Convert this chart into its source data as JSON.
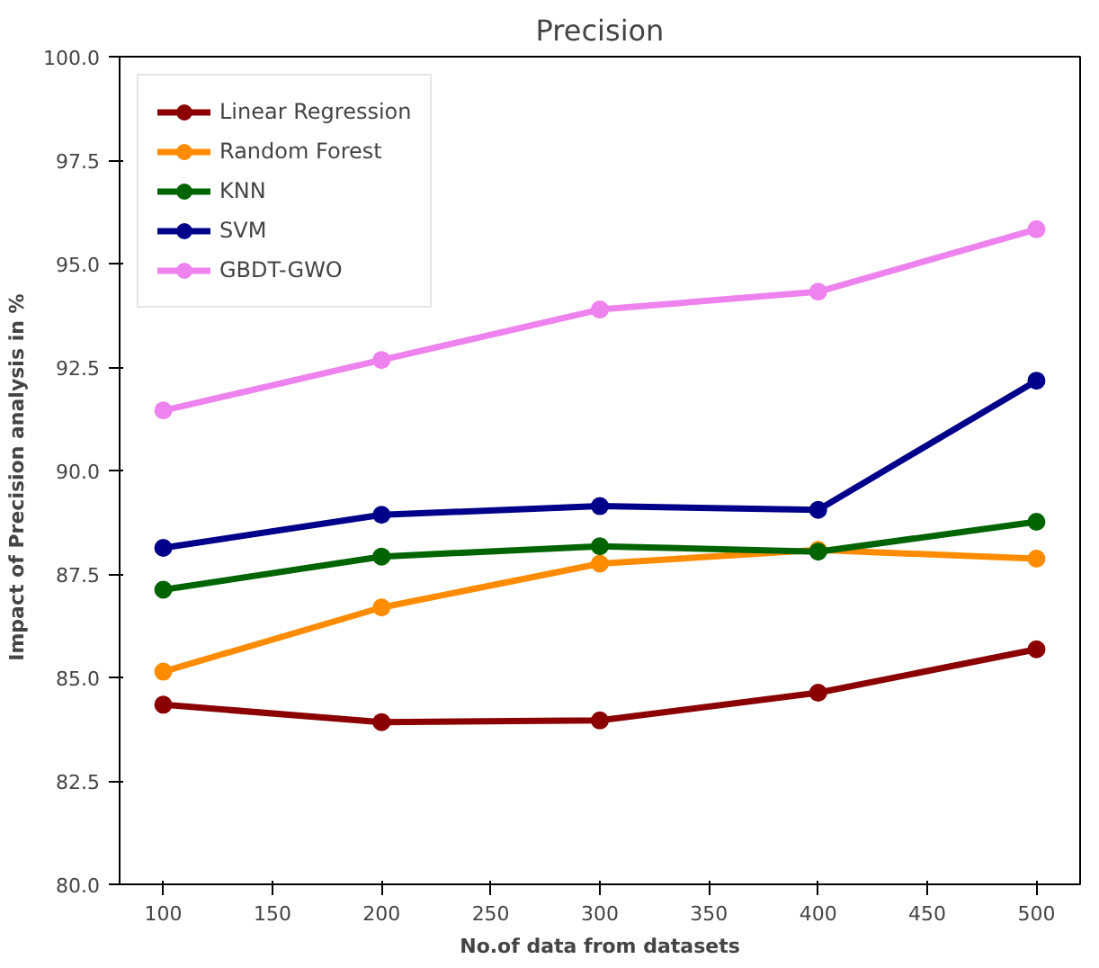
{
  "chart_data": {
    "type": "line",
    "title": "Precision",
    "xlabel": "No.of data from datasets",
    "ylabel": "Impact of  Precision  analysis in %",
    "x": [
      100,
      200,
      300,
      400,
      500
    ],
    "series": [
      {
        "name": "Linear Regression",
        "color": "#8b0000",
        "values": [
          84.34,
          83.92,
          83.96,
          84.63,
          85.68
        ]
      },
      {
        "name": "Random Forest",
        "color": "#ff8c00",
        "values": [
          85.14,
          86.69,
          87.75,
          88.08,
          87.87
        ]
      },
      {
        "name": "KNN",
        "color": "#006400",
        "values": [
          87.12,
          87.92,
          88.17,
          88.04,
          88.76
        ]
      },
      {
        "name": "SVM",
        "color": "#00008b",
        "values": [
          88.13,
          88.93,
          89.14,
          89.05,
          92.17
        ]
      },
      {
        "name": "GBDT-GWO",
        "color": "#ee82ee",
        "values": [
          91.45,
          92.67,
          93.89,
          94.32,
          95.83
        ]
      }
    ],
    "xlim": [
      80,
      520
    ],
    "ylim": [
      80,
      100
    ],
    "xticks": [
      100,
      150,
      200,
      250,
      300,
      350,
      400,
      450,
      500
    ],
    "yticks": [
      {
        "value": 80,
        "label": "80.0"
      },
      {
        "value": 82.5,
        "label": "82.5"
      },
      {
        "value": 85,
        "label": "85.0"
      },
      {
        "value": 87.5,
        "label": "87.5"
      },
      {
        "value": 90,
        "label": "90.0"
      },
      {
        "value": 92.5,
        "label": "92.5"
      },
      {
        "value": 95,
        "label": "95.0"
      },
      {
        "value": 97.5,
        "label": "97.5"
      },
      {
        "value": 100,
        "label": "100.0"
      }
    ],
    "grid": false,
    "legend": "top left",
    "marker": "circle",
    "line_style": "solid"
  }
}
